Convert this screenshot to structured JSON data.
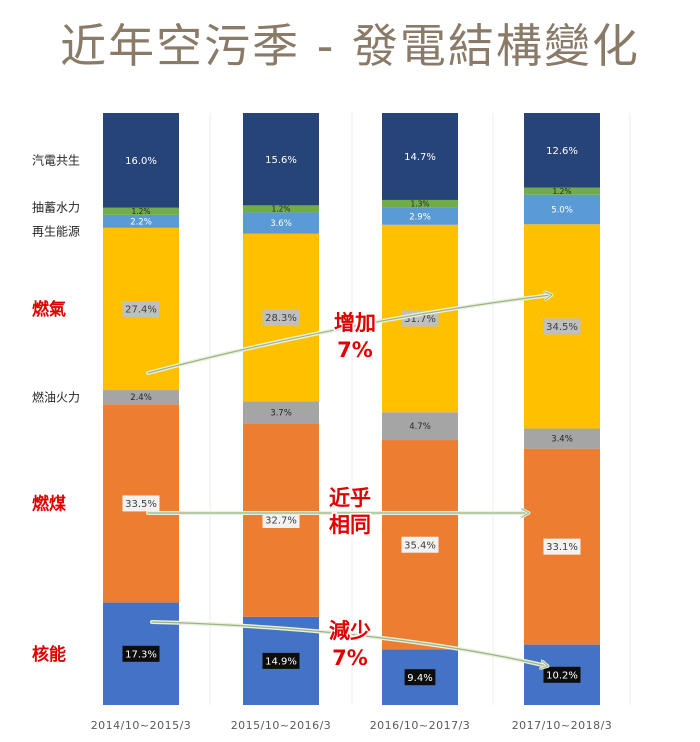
{
  "title": "近年空污季 - 發電結構變化",
  "chart_data": {
    "type": "bar",
    "stacked": true,
    "categories": [
      "2014/10~2015/3",
      "2015/10~2016/3",
      "2016/10~2017/3",
      "2017/10~2018/3"
    ],
    "series": [
      {
        "name": "核能",
        "color": "#4472c4",
        "values": [
          17.3,
          14.9,
          9.4,
          10.2
        ]
      },
      {
        "name": "燃煤",
        "color": "#ed7d31",
        "values": [
          33.5,
          32.7,
          35.4,
          33.1
        ]
      },
      {
        "name": "燃油火力",
        "color": "#a5a5a5",
        "values": [
          2.4,
          3.7,
          4.7,
          3.4
        ]
      },
      {
        "name": "燃氣",
        "color": "#ffc000",
        "values": [
          27.4,
          28.3,
          31.7,
          34.5
        ]
      },
      {
        "name": "再生能源",
        "color": "#5b9bd5",
        "values": [
          2.2,
          3.6,
          2.9,
          5.0
        ]
      },
      {
        "name": "抽蓄水力",
        "color": "#70ad47",
        "values": [
          1.2,
          1.2,
          1.3,
          1.2
        ]
      },
      {
        "name": "汽電共生",
        "color": "#264478",
        "values": [
          16.0,
          15.6,
          14.7,
          12.6
        ]
      }
    ],
    "value_labels": [
      [
        "17.3%",
        "33.5%",
        "2.4%",
        "27.4%",
        "2.2%",
        "1.2%",
        "16.0%"
      ],
      [
        "14.9%",
        "32.7%",
        "3.7%",
        "28.3%",
        "3.6%",
        "1.2%",
        "15.6%"
      ],
      [
        "9.4%",
        "35.4%",
        "4.7%",
        "31.7%",
        "2.9%",
        "1.3%",
        "14.7%"
      ],
      [
        "10.2%",
        "33.1%",
        "3.4%",
        "34.5%",
        "5.0%",
        "1.2%",
        "12.6%"
      ]
    ],
    "ylim": [
      0,
      100
    ],
    "legend_placement": "left",
    "annotations": [
      {
        "id": "gas",
        "lines": [
          "增加",
          "7%"
        ],
        "color": "#e00000"
      },
      {
        "id": "coal",
        "lines": [
          "近乎",
          "相同"
        ],
        "color": "#e00000"
      },
      {
        "id": "nuclear",
        "lines": [
          "減少",
          "7%"
        ],
        "color": "#e00000"
      }
    ]
  }
}
